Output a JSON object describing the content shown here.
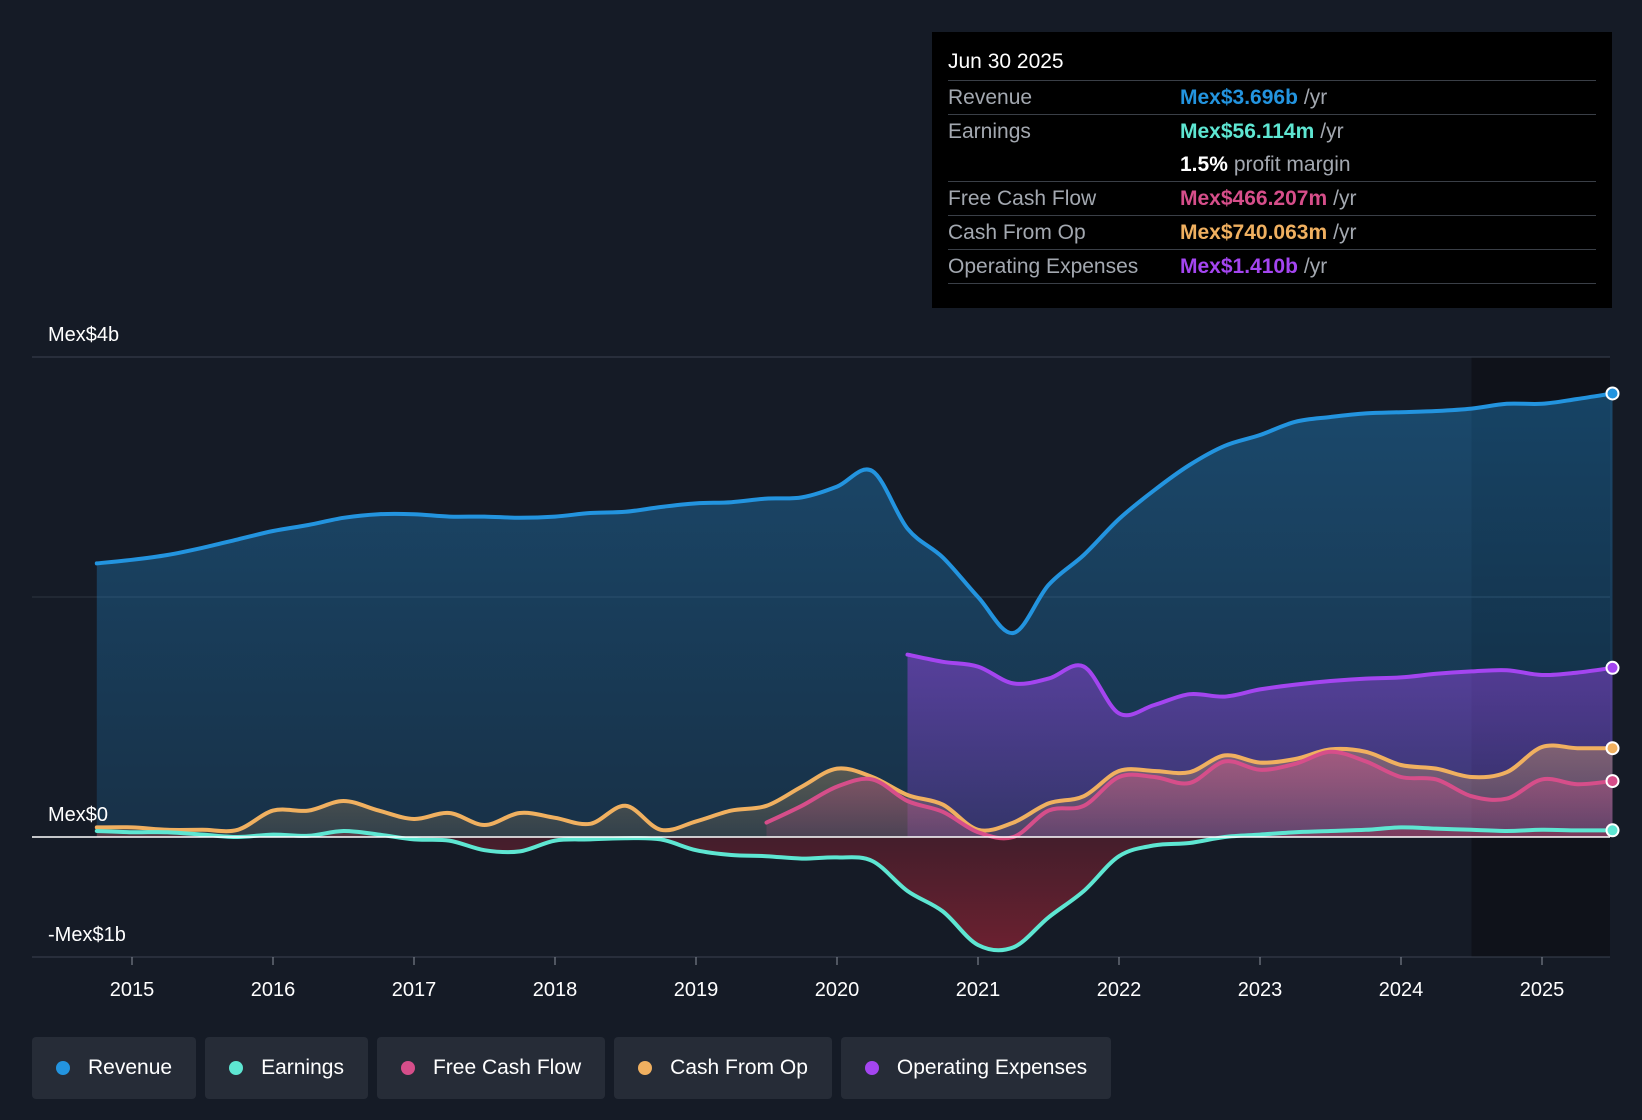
{
  "tooltip": {
    "date": "Jun 30 2025",
    "rows": [
      {
        "label": "Revenue",
        "value": "Mex$3.696b",
        "unit": "/yr",
        "color": "#2394df"
      },
      {
        "label": "Earnings",
        "value": "Mex$56.114m",
        "unit": "/yr",
        "color": "#5ee6d2"
      },
      {
        "label": "",
        "value": "1.5%",
        "unit": "profit margin",
        "color": "#ffffff"
      },
      {
        "label": "Free Cash Flow",
        "value": "Mex$466.207m",
        "unit": "/yr",
        "color": "#d64e8a"
      },
      {
        "label": "Cash From Op",
        "value": "Mex$740.063m",
        "unit": "/yr",
        "color": "#f0b060"
      },
      {
        "label": "Operating Expenses",
        "value": "Mex$1.410b",
        "unit": "/yr",
        "color": "#a445f0"
      }
    ]
  },
  "legend": [
    {
      "label": "Revenue",
      "color": "#2394df"
    },
    {
      "label": "Earnings",
      "color": "#5ee6d2"
    },
    {
      "label": "Free Cash Flow",
      "color": "#d64e8a"
    },
    {
      "label": "Cash From Op",
      "color": "#f0b060"
    },
    {
      "label": "Operating Expenses",
      "color": "#a445f0"
    }
  ],
  "chart_data": {
    "type": "area",
    "title": "",
    "xlabel": "",
    "ylabel": "",
    "unit": "Mex$ billions",
    "y_axis_labels": {
      "top": "Mex$4b",
      "zero": "Mex$0",
      "bottom": "-Mex$1b"
    },
    "ylim": [
      -1,
      4
    ],
    "xlim": [
      2014.3,
      2025.5
    ],
    "x_ticks": [
      2015,
      2016,
      2017,
      2018,
      2019,
      2020,
      2021,
      2022,
      2023,
      2024,
      2025
    ],
    "x_tick_labels": [
      "2015",
      "2016",
      "2017",
      "2018",
      "2019",
      "2020",
      "2021",
      "2022",
      "2023",
      "2024",
      "2025"
    ],
    "forecast_start": 2024.5,
    "series": [
      {
        "name": "Revenue",
        "color": "#2394df",
        "fill": true,
        "points": [
          [
            2014.75,
            2.28
          ],
          [
            2015,
            2.31
          ],
          [
            2015.25,
            2.35
          ],
          [
            2015.5,
            2.41
          ],
          [
            2015.75,
            2.48
          ],
          [
            2016,
            2.55
          ],
          [
            2016.25,
            2.6
          ],
          [
            2016.5,
            2.66
          ],
          [
            2016.75,
            2.69
          ],
          [
            2017,
            2.69
          ],
          [
            2017.25,
            2.67
          ],
          [
            2017.5,
            2.67
          ],
          [
            2017.75,
            2.66
          ],
          [
            2018,
            2.67
          ],
          [
            2018.25,
            2.7
          ],
          [
            2018.5,
            2.71
          ],
          [
            2018.75,
            2.75
          ],
          [
            2019,
            2.78
          ],
          [
            2019.25,
            2.79
          ],
          [
            2019.5,
            2.82
          ],
          [
            2019.75,
            2.83
          ],
          [
            2020,
            2.92
          ],
          [
            2020.25,
            3.05
          ],
          [
            2020.5,
            2.57
          ],
          [
            2020.75,
            2.33
          ],
          [
            2021,
            2.0
          ],
          [
            2021.25,
            1.7
          ],
          [
            2021.5,
            2.1
          ],
          [
            2021.75,
            2.35
          ],
          [
            2022,
            2.65
          ],
          [
            2022.25,
            2.89
          ],
          [
            2022.5,
            3.1
          ],
          [
            2022.75,
            3.26
          ],
          [
            2023,
            3.35
          ],
          [
            2023.25,
            3.46
          ],
          [
            2023.5,
            3.5
          ],
          [
            2023.75,
            3.53
          ],
          [
            2024,
            3.54
          ],
          [
            2024.25,
            3.55
          ],
          [
            2024.5,
            3.57
          ],
          [
            2024.75,
            3.61
          ],
          [
            2025,
            3.61
          ],
          [
            2025.25,
            3.65
          ],
          [
            2025.5,
            3.696
          ]
        ]
      },
      {
        "name": "Operating Expenses",
        "color": "#a445f0",
        "fill": true,
        "points": [
          [
            2020.5,
            1.52
          ],
          [
            2020.75,
            1.46
          ],
          [
            2021,
            1.42
          ],
          [
            2021.25,
            1.28
          ],
          [
            2021.5,
            1.32
          ],
          [
            2021.75,
            1.42
          ],
          [
            2022,
            1.03
          ],
          [
            2022.25,
            1.1
          ],
          [
            2022.5,
            1.19
          ],
          [
            2022.75,
            1.17
          ],
          [
            2023,
            1.23
          ],
          [
            2023.25,
            1.27
          ],
          [
            2023.5,
            1.3
          ],
          [
            2023.75,
            1.32
          ],
          [
            2024,
            1.33
          ],
          [
            2024.25,
            1.36
          ],
          [
            2024.5,
            1.38
          ],
          [
            2024.75,
            1.39
          ],
          [
            2025,
            1.35
          ],
          [
            2025.25,
            1.37
          ],
          [
            2025.5,
            1.41
          ]
        ]
      },
      {
        "name": "Cash From Op",
        "color": "#f0b060",
        "fill": true,
        "points": [
          [
            2014.75,
            0.08
          ],
          [
            2015,
            0.08
          ],
          [
            2015.25,
            0.06
          ],
          [
            2015.5,
            0.06
          ],
          [
            2015.75,
            0.06
          ],
          [
            2016,
            0.22
          ],
          [
            2016.25,
            0.22
          ],
          [
            2016.5,
            0.3
          ],
          [
            2016.75,
            0.22
          ],
          [
            2017,
            0.15
          ],
          [
            2017.25,
            0.2
          ],
          [
            2017.5,
            0.1
          ],
          [
            2017.75,
            0.2
          ],
          [
            2018,
            0.16
          ],
          [
            2018.25,
            0.11
          ],
          [
            2018.5,
            0.26
          ],
          [
            2018.75,
            0.06
          ],
          [
            2019,
            0.13
          ],
          [
            2019.25,
            0.22
          ],
          [
            2019.5,
            0.26
          ],
          [
            2019.75,
            0.42
          ],
          [
            2020,
            0.57
          ],
          [
            2020.25,
            0.5
          ],
          [
            2020.5,
            0.35
          ],
          [
            2020.75,
            0.27
          ],
          [
            2021,
            0.06
          ],
          [
            2021.25,
            0.12
          ],
          [
            2021.5,
            0.28
          ],
          [
            2021.75,
            0.34
          ],
          [
            2022,
            0.55
          ],
          [
            2022.25,
            0.55
          ],
          [
            2022.5,
            0.54
          ],
          [
            2022.75,
            0.68
          ],
          [
            2023,
            0.62
          ],
          [
            2023.25,
            0.65
          ],
          [
            2023.5,
            0.73
          ],
          [
            2023.75,
            0.71
          ],
          [
            2024,
            0.6
          ],
          [
            2024.25,
            0.57
          ],
          [
            2024.5,
            0.5
          ],
          [
            2024.75,
            0.54
          ],
          [
            2025,
            0.75
          ],
          [
            2025.25,
            0.74
          ],
          [
            2025.5,
            0.74
          ]
        ]
      },
      {
        "name": "Free Cash Flow",
        "color": "#d64e8a",
        "fill": true,
        "points": [
          [
            2019.5,
            0.12
          ],
          [
            2019.75,
            0.26
          ],
          [
            2020,
            0.42
          ],
          [
            2020.25,
            0.48
          ],
          [
            2020.5,
            0.3
          ],
          [
            2020.75,
            0.21
          ],
          [
            2021,
            0.04
          ],
          [
            2021.25,
            0.0
          ],
          [
            2021.5,
            0.22
          ],
          [
            2021.75,
            0.26
          ],
          [
            2022,
            0.5
          ],
          [
            2022.25,
            0.5
          ],
          [
            2022.5,
            0.45
          ],
          [
            2022.75,
            0.63
          ],
          [
            2023,
            0.56
          ],
          [
            2023.25,
            0.61
          ],
          [
            2023.5,
            0.71
          ],
          [
            2023.75,
            0.63
          ],
          [
            2024,
            0.5
          ],
          [
            2024.25,
            0.48
          ],
          [
            2024.5,
            0.34
          ],
          [
            2024.75,
            0.32
          ],
          [
            2025,
            0.48
          ],
          [
            2025.25,
            0.44
          ],
          [
            2025.5,
            0.466
          ]
        ]
      },
      {
        "name": "Earnings",
        "color": "#5ee6d2",
        "fill": true,
        "points": [
          [
            2014.75,
            0.05
          ],
          [
            2015,
            0.04
          ],
          [
            2015.25,
            0.04
          ],
          [
            2015.5,
            0.02
          ],
          [
            2015.75,
            0.0
          ],
          [
            2016,
            0.02
          ],
          [
            2016.25,
            0.01
          ],
          [
            2016.5,
            0.05
          ],
          [
            2016.75,
            0.02
          ],
          [
            2017,
            -0.02
          ],
          [
            2017.25,
            -0.03
          ],
          [
            2017.5,
            -0.11
          ],
          [
            2017.75,
            -0.12
          ],
          [
            2018,
            -0.03
          ],
          [
            2018.25,
            -0.02
          ],
          [
            2018.5,
            -0.01
          ],
          [
            2018.75,
            -0.02
          ],
          [
            2019,
            -0.11
          ],
          [
            2019.25,
            -0.15
          ],
          [
            2019.5,
            -0.16
          ],
          [
            2019.75,
            -0.18
          ],
          [
            2020,
            -0.17
          ],
          [
            2020.25,
            -0.2
          ],
          [
            2020.5,
            -0.45
          ],
          [
            2020.75,
            -0.62
          ],
          [
            2021,
            -0.9
          ],
          [
            2021.25,
            -0.92
          ],
          [
            2021.5,
            -0.67
          ],
          [
            2021.75,
            -0.45
          ],
          [
            2022,
            -0.16
          ],
          [
            2022.25,
            -0.07
          ],
          [
            2022.5,
            -0.05
          ],
          [
            2022.75,
            0.0
          ],
          [
            2023,
            0.02
          ],
          [
            2023.25,
            0.04
          ],
          [
            2023.5,
            0.05
          ],
          [
            2023.75,
            0.06
          ],
          [
            2024,
            0.08
          ],
          [
            2024.25,
            0.07
          ],
          [
            2024.5,
            0.06
          ],
          [
            2024.75,
            0.05
          ],
          [
            2025,
            0.06
          ],
          [
            2025.25,
            0.055
          ],
          [
            2025.5,
            0.056
          ]
        ]
      }
    ]
  }
}
